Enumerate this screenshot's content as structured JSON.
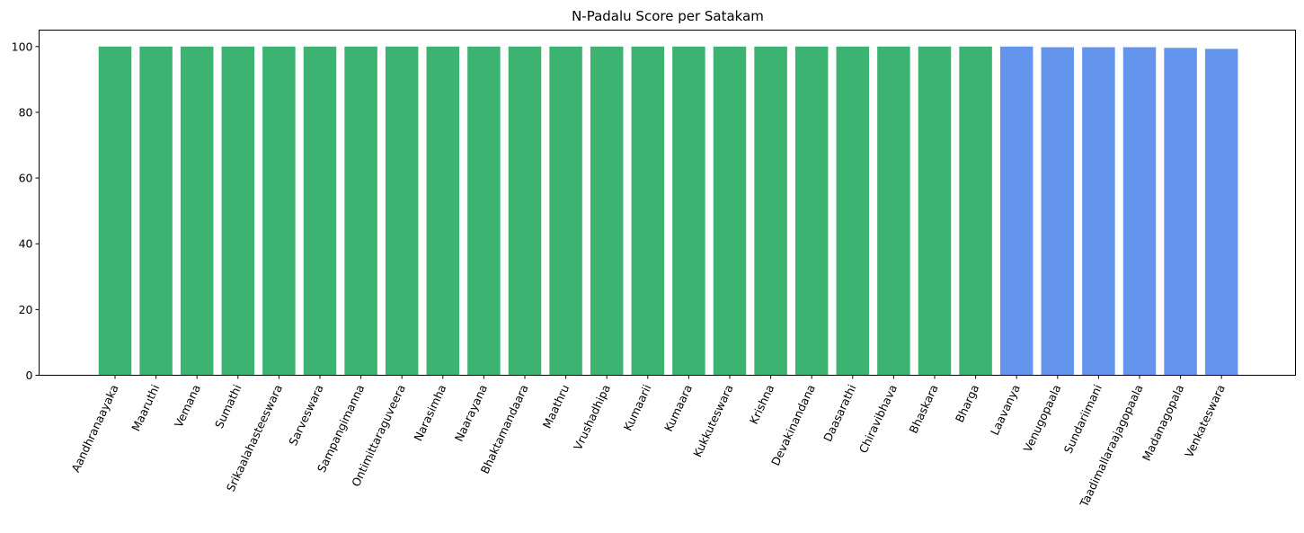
{
  "chart_data": {
    "type": "bar",
    "title": "N-Padalu Score per Satakam",
    "xlabel": "",
    "ylabel": "",
    "ylim": [
      0,
      105
    ],
    "yticks": [
      0,
      20,
      40,
      60,
      80,
      100
    ],
    "grid": false,
    "categories": [
      "Aandhranaayaka",
      "Maaruthi",
      "Vemana",
      "Sumathi",
      "Srikaalahasteeswara",
      "Sarveswara",
      "Sampangimanna",
      "Ontimittaraguveera",
      "Narasimha",
      "Naarayana",
      "Bhaktamandaara",
      "Maathru",
      "Vrushadhipa",
      "Kumaarii",
      "Kumaara",
      "Kukkuteswara",
      "Krishna",
      "Devakinandana",
      "Daasarathi",
      "Chiravibhava",
      "Bhaskara",
      "Bharga",
      "Laavanya",
      "Venugopaala",
      "Sundariimani",
      "Taadimallaraajagopaala",
      "Madanagopala",
      "Venkateswara"
    ],
    "values": [
      100,
      100,
      100,
      100,
      100,
      100,
      100,
      100,
      100,
      100,
      100,
      100,
      100,
      100,
      100,
      100,
      100,
      100,
      100,
      100,
      100,
      100,
      100,
      99.8,
      99.8,
      99.8,
      99.6,
      99.3
    ],
    "bar_colors": [
      "#3cb371",
      "#3cb371",
      "#3cb371",
      "#3cb371",
      "#3cb371",
      "#3cb371",
      "#3cb371",
      "#3cb371",
      "#3cb371",
      "#3cb371",
      "#3cb371",
      "#3cb371",
      "#3cb371",
      "#3cb371",
      "#3cb371",
      "#3cb371",
      "#3cb371",
      "#3cb371",
      "#3cb371",
      "#3cb371",
      "#3cb371",
      "#3cb371",
      "#6495ed",
      "#6495ed",
      "#6495ed",
      "#6495ed",
      "#6495ed",
      "#6495ed"
    ]
  }
}
